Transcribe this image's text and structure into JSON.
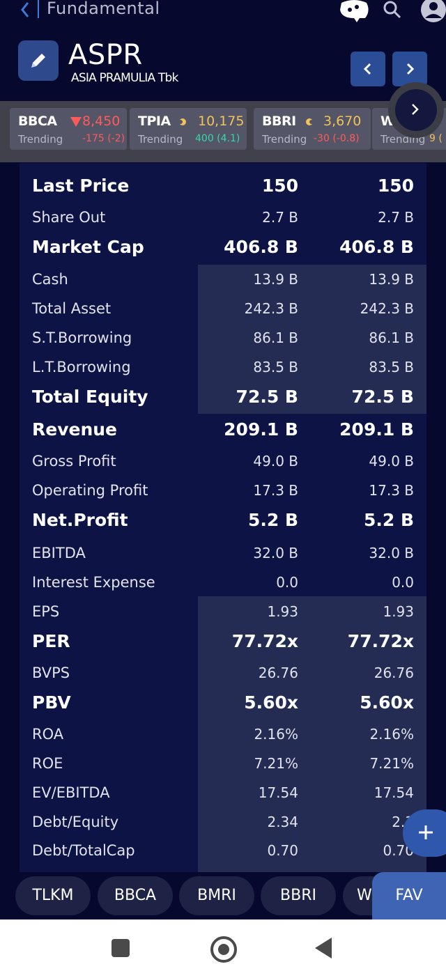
{
  "header": {
    "title": "Fundamental",
    "ticker": "ASPR",
    "company": "ASIA PRAMULIA Tbk"
  },
  "strip": {
    "cards": [
      {
        "symbol": "BBCA",
        "price": "8,450",
        "status": "Trending",
        "change": "-175 (-2)",
        "color": "#ff5b5b",
        "indicator": "down-triangle-icon"
      },
      {
        "symbol": "TPIA",
        "price": "10,175",
        "status": "Trending",
        "change": "400 (4.1)",
        "color": "#f0c35a",
        "indicator": "flat-dot-icon"
      },
      {
        "symbol": "BBRI",
        "price": "3,670",
        "status": "Trending",
        "change": "-30 (-0.8)",
        "color": "#f0c35a",
        "indicator": "flat-dot-icon"
      },
      {
        "symbol": "W",
        "price": "",
        "status": "Trending",
        "change": "9 (",
        "color": "#f0c35a",
        "indicator": ""
      }
    ]
  },
  "table": {
    "rows": [
      {
        "label": "Last Price",
        "v1": "150",
        "v2": "150",
        "big": true
      },
      {
        "label": "Share Out",
        "v1": "2.7 B",
        "v2": "2.7 B",
        "big": false
      },
      {
        "label": "Market Cap",
        "v1": "406.8 B",
        "v2": "406.8 B",
        "big": true
      },
      {
        "label": "Cash",
        "v1": "13.9 B",
        "v2": "13.9 B",
        "big": false
      },
      {
        "label": "Total Asset",
        "v1": "242.3 B",
        "v2": "242.3 B",
        "big": false
      },
      {
        "label": "S.T.Borrowing",
        "v1": "86.1 B",
        "v2": "86.1 B",
        "big": false
      },
      {
        "label": "L.T.Borrowing",
        "v1": "83.5 B",
        "v2": "83.5 B",
        "big": false
      },
      {
        "label": "Total Equity",
        "v1": "72.5 B",
        "v2": "72.5 B",
        "big": true
      },
      {
        "label": "Revenue",
        "v1": "209.1 B",
        "v2": "209.1 B",
        "big": true
      },
      {
        "label": "Gross Profit",
        "v1": "49.0 B",
        "v2": "49.0 B",
        "big": false
      },
      {
        "label": "Operating Profit",
        "v1": "17.3 B",
        "v2": "17.3 B",
        "big": false
      },
      {
        "label": "Net.Profit",
        "v1": "5.2 B",
        "v2": "5.2 B",
        "big": true
      },
      {
        "label": "EBITDA",
        "v1": "32.0 B",
        "v2": "32.0 B",
        "big": false
      },
      {
        "label": "Interest Expense",
        "v1": "0.0",
        "v2": "0.0",
        "big": false
      },
      {
        "label": "EPS",
        "v1": "1.93",
        "v2": "1.93",
        "big": false
      },
      {
        "label": "PER",
        "v1": "77.72x",
        "v2": "77.72x",
        "big": true
      },
      {
        "label": "BVPS",
        "v1": "26.76",
        "v2": "26.76",
        "big": false
      },
      {
        "label": "PBV",
        "v1": "5.60x",
        "v2": "5.60x",
        "big": true
      },
      {
        "label": "ROA",
        "v1": "2.16%",
        "v2": "2.16%",
        "big": false
      },
      {
        "label": "ROE",
        "v1": "7.21%",
        "v2": "7.21%",
        "big": false
      },
      {
        "label": "EV/EBITDA",
        "v1": "17.54",
        "v2": "17.54",
        "big": false
      },
      {
        "label": "Debt/Equity",
        "v1": "2.34",
        "v2": "2.3",
        "big": false
      },
      {
        "label": "Debt/TotalCap",
        "v1": "0.70",
        "v2": "0.70",
        "big": false
      }
    ]
  },
  "bottom": {
    "pills": [
      "TLKM",
      "BBCA",
      "BMRI",
      "BBRI",
      "W"
    ],
    "fav_label": "FAV"
  }
}
